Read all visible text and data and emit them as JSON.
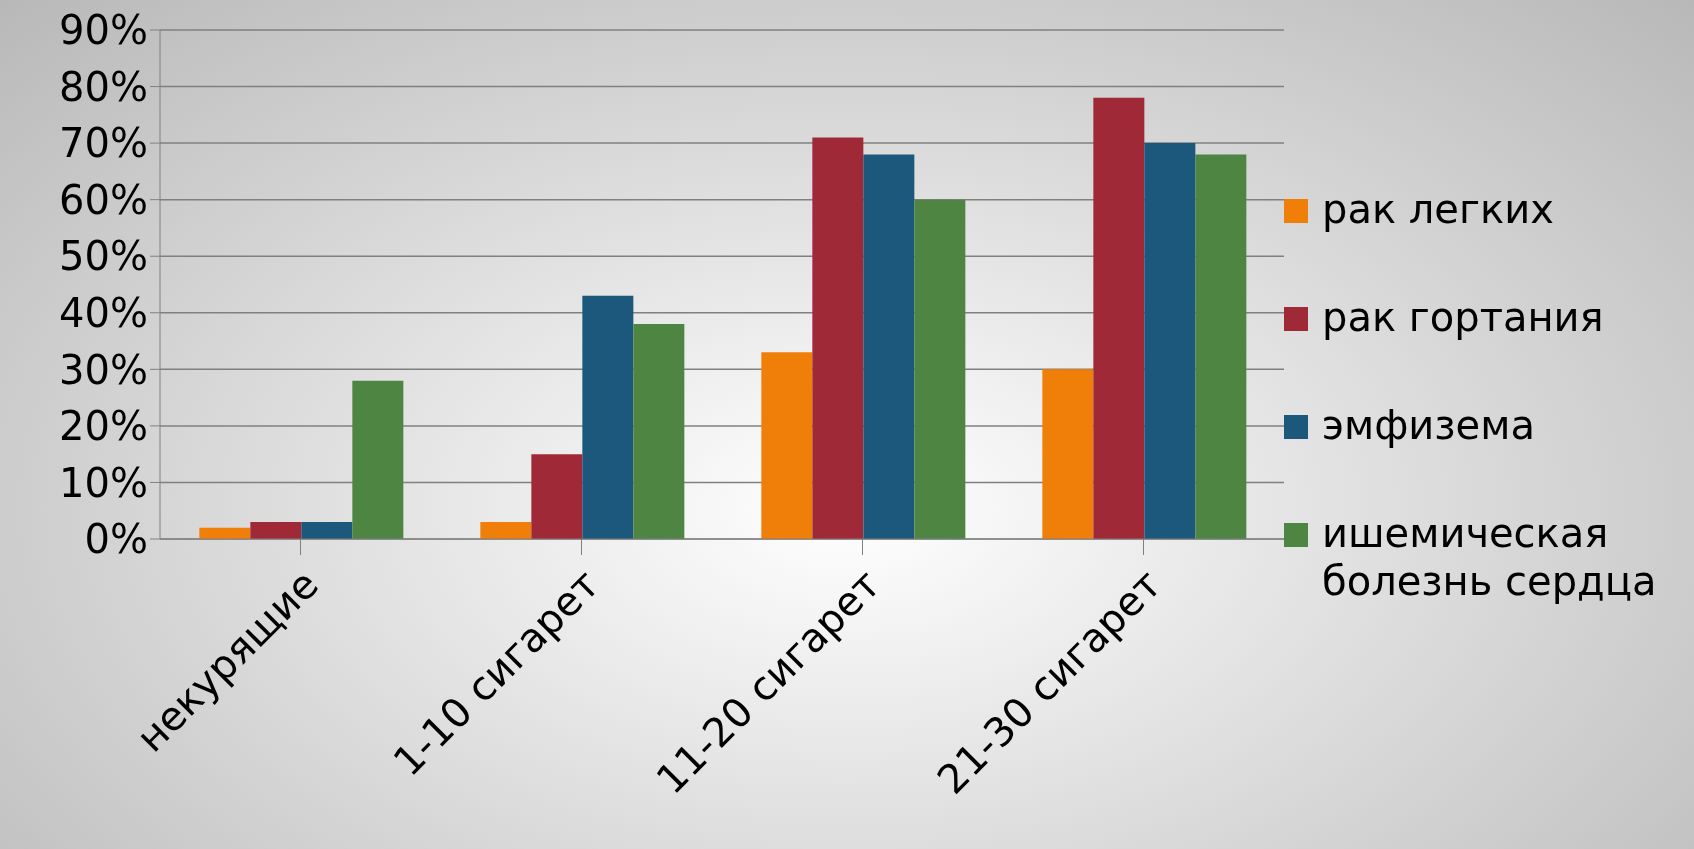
{
  "chart_data": {
    "type": "bar",
    "categories": [
      "некурящие",
      "1-10 сигарет",
      "11-20 сигарет",
      "21-30 сигарет"
    ],
    "series": [
      {
        "name": "рак легких",
        "color": "#f07f09",
        "values": [
          2,
          3,
          33,
          30
        ]
      },
      {
        "name": "рак гортания",
        "color": "#9f2936",
        "values": [
          3,
          15,
          71,
          78
        ]
      },
      {
        "name": "эмфизема",
        "color": "#1b587c",
        "values": [
          3,
          43,
          68,
          70
        ]
      },
      {
        "name": "ишемическая болезнь сердца",
        "color": "#4e8542",
        "values": [
          28,
          38,
          60,
          68
        ]
      }
    ],
    "ylim": [
      0,
      90
    ],
    "yticks": [
      {
        "value": 0,
        "label": "0%"
      },
      {
        "value": 10,
        "label": "10%"
      },
      {
        "value": 20,
        "label": "20%"
      },
      {
        "value": 30,
        "label": "30%"
      },
      {
        "value": 40,
        "label": "40%"
      },
      {
        "value": 50,
        "label": "50%"
      },
      {
        "value": 60,
        "label": "60%"
      },
      {
        "value": 70,
        "label": "70%"
      },
      {
        "value": 80,
        "label": "80%"
      },
      {
        "value": 90,
        "label": "90%"
      }
    ],
    "grid": "y",
    "legend": "right"
  }
}
